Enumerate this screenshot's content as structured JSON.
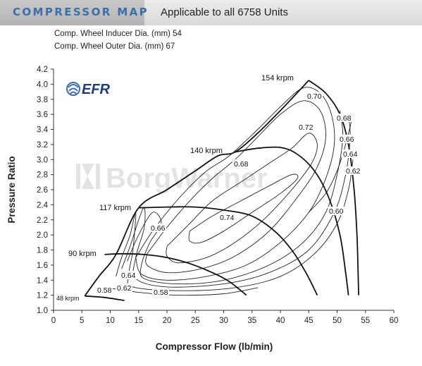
{
  "header": {
    "title": "COMPRESSOR MAP",
    "subtitle": "Applicable to all 6758 Units"
  },
  "specs": {
    "inducer": "Comp. Wheel Inducer Dia. (mm) 54",
    "outer": "Comp. Wheel Outer Dia. (mm) 67"
  },
  "logos": {
    "efr": "EFR",
    "watermark": "BorgWarner"
  },
  "chart_data": {
    "type": "line",
    "title": "",
    "xlabel": "Compressor Flow (lb/min)",
    "ylabel": "Pressure Ratio",
    "xlim": [
      0,
      60
    ],
    "ylim": [
      1.0,
      4.2
    ],
    "x_ticks": [
      "0",
      "5",
      "10",
      "15",
      "20",
      "25",
      "30",
      "35",
      "40",
      "45",
      "50",
      "55",
      "60"
    ],
    "y_ticks": [
      "1.0",
      "1.2",
      "1.4",
      "1.6",
      "1.8",
      "2.0",
      "2.2",
      "2.4",
      "2.6",
      "2.8",
      "3.0",
      "3.2",
      "3.4",
      "3.6",
      "3.8",
      "4.0",
      "4.2"
    ],
    "grid": false,
    "surge_line": [
      [
        5.5,
        1.19
      ],
      [
        8,
        1.45
      ],
      [
        11,
        1.74
      ],
      [
        15,
        2.36
      ],
      [
        20,
        2.6
      ],
      [
        25,
        2.85
      ],
      [
        29,
        3.05
      ],
      [
        32,
        3.1
      ],
      [
        36,
        3.35
      ],
      [
        40,
        3.65
      ],
      [
        45,
        4.05
      ]
    ],
    "speed_lines": [
      {
        "label": "48 krpm",
        "points": [
          [
            5.5,
            1.19
          ],
          [
            9,
            1.17
          ],
          [
            12.5,
            1.13
          ]
        ]
      },
      {
        "label": "90 krpm",
        "points": [
          [
            9,
            1.74
          ],
          [
            12,
            1.75
          ],
          [
            16,
            1.74
          ],
          [
            20,
            1.7
          ],
          [
            24,
            1.62
          ],
          [
            28,
            1.5
          ],
          [
            31,
            1.38
          ],
          [
            34,
            1.2
          ]
        ]
      },
      {
        "label": "117 krpm",
        "points": [
          [
            15,
            2.36
          ],
          [
            20,
            2.37
          ],
          [
            25,
            2.37
          ],
          [
            30,
            2.33
          ],
          [
            35,
            2.25
          ],
          [
            39,
            2.05
          ],
          [
            42,
            1.8
          ],
          [
            44.5,
            1.5
          ],
          [
            46.5,
            1.2
          ]
        ]
      },
      {
        "label": "140 krpm",
        "points": [
          [
            32,
            3.1
          ],
          [
            36,
            3.15
          ],
          [
            40,
            3.16
          ],
          [
            43,
            3.07
          ],
          [
            46,
            2.85
          ],
          [
            48.5,
            2.5
          ],
          [
            50.5,
            2.0
          ],
          [
            51.5,
            1.5
          ],
          [
            52,
            1.2
          ]
        ]
      },
      {
        "label": "154 krpm",
        "points": [
          [
            45,
            4.05
          ],
          [
            48,
            3.88
          ],
          [
            50.5,
            3.6
          ],
          [
            52,
            3.2
          ],
          [
            53,
            2.6
          ],
          [
            53.5,
            2.0
          ],
          [
            53.7,
            1.5
          ],
          [
            53.8,
            1.2
          ]
        ]
      }
    ],
    "efficiency_islands": [
      {
        "label": "0.74",
        "points": [
          [
            24,
            2.05
          ],
          [
            28,
            2.25
          ],
          [
            33,
            2.45
          ],
          [
            38,
            2.65
          ],
          [
            42,
            2.8
          ],
          [
            43,
            2.75
          ],
          [
            40,
            2.55
          ],
          [
            35,
            2.3
          ],
          [
            30,
            2.05
          ],
          [
            26,
            1.9
          ],
          [
            24,
            1.92
          ],
          [
            24,
            2.05
          ]
        ]
      },
      {
        "label": "0.72",
        "points": [
          [
            20,
            1.85
          ],
          [
            24,
            2.15
          ],
          [
            28,
            2.45
          ],
          [
            33,
            2.7
          ],
          [
            38,
            2.95
          ],
          [
            42,
            3.15
          ],
          [
            45,
            3.35
          ],
          [
            46.5,
            3.2
          ],
          [
            45.5,
            2.95
          ],
          [
            42,
            2.6
          ],
          [
            37,
            2.2
          ],
          [
            32,
            1.9
          ],
          [
            27,
            1.7
          ],
          [
            22,
            1.63
          ],
          [
            20,
            1.72
          ],
          [
            20,
            1.85
          ]
        ]
      },
      {
        "label": "0.70",
        "points": [
          [
            16.5,
            1.75
          ],
          [
            20,
            2.1
          ],
          [
            24,
            2.45
          ],
          [
            28,
            2.75
          ],
          [
            32,
            3.0
          ],
          [
            36,
            3.3
          ],
          [
            40,
            3.6
          ],
          [
            44,
            3.78
          ],
          [
            47,
            3.65
          ],
          [
            48,
            3.3
          ],
          [
            46.5,
            2.9
          ],
          [
            43,
            2.5
          ],
          [
            38,
            2.05
          ],
          [
            32,
            1.72
          ],
          [
            26,
            1.55
          ],
          [
            20,
            1.5
          ],
          [
            16.5,
            1.6
          ],
          [
            16.5,
            1.75
          ]
        ]
      },
      {
        "label": "0.68",
        "points": [
          [
            14.5,
            1.7
          ],
          [
            17,
            2.0
          ],
          [
            20,
            2.3
          ],
          [
            23.5,
            2.6
          ],
          [
            27,
            2.85
          ],
          [
            31,
            3.05
          ],
          [
            36,
            3.4
          ],
          [
            40,
            3.7
          ],
          [
            44,
            3.95
          ],
          [
            47,
            3.88
          ],
          [
            49,
            3.6
          ],
          [
            49.5,
            3.2
          ],
          [
            48,
            2.75
          ],
          [
            45,
            2.3
          ],
          [
            40,
            1.9
          ],
          [
            34,
            1.6
          ],
          [
            27,
            1.45
          ],
          [
            20,
            1.4
          ],
          [
            15.5,
            1.48
          ],
          [
            14.5,
            1.7
          ]
        ]
      },
      {
        "label": "0.66",
        "points": [
          [
            13,
            1.65
          ],
          [
            15,
            2.0
          ],
          [
            17.5,
            2.3
          ],
          [
            19,
            2.15
          ],
          [
            17,
            1.9
          ],
          [
            15.5,
            1.6
          ],
          [
            16,
            1.42
          ],
          [
            22,
            1.35
          ],
          [
            30,
            1.4
          ],
          [
            38,
            1.6
          ],
          [
            44,
            1.9
          ],
          [
            48,
            2.3
          ],
          [
            50,
            2.8
          ],
          [
            51,
            3.3
          ],
          [
            50.5,
            3.65
          ]
        ]
      },
      {
        "label": "0.64",
        "points": [
          [
            12,
            1.55
          ],
          [
            13.5,
            1.85
          ],
          [
            15,
            2.2
          ],
          [
            16,
            2.36
          ],
          [
            16,
            2.1
          ],
          [
            14.5,
            1.7
          ],
          [
            14.5,
            1.42
          ],
          [
            20,
            1.31
          ],
          [
            30,
            1.35
          ],
          [
            38,
            1.5
          ],
          [
            45,
            1.8
          ],
          [
            49.5,
            2.3
          ],
          [
            51.5,
            2.8
          ],
          [
            52.3,
            3.3
          ],
          [
            52,
            3.6
          ]
        ]
      },
      {
        "label": "0.62",
        "points": [
          [
            11,
            1.45
          ],
          [
            12,
            1.7
          ],
          [
            13.5,
            2.0
          ],
          [
            14.5,
            2.3
          ],
          [
            14,
            1.8
          ],
          [
            13.2,
            1.45
          ],
          [
            14,
            1.31
          ],
          [
            22,
            1.26
          ],
          [
            32,
            1.3
          ],
          [
            40,
            1.45
          ],
          [
            46,
            1.75
          ],
          [
            50,
            2.15
          ],
          [
            52,
            2.6
          ],
          [
            52.8,
            3.0
          ]
        ]
      },
      {
        "label": "0.60",
        "points": [
          [
            45,
            2.3
          ],
          [
            48,
            2.55
          ],
          [
            50,
            2.85
          ],
          [
            51.5,
            3.2
          ],
          [
            52.5,
            3.5
          ]
        ]
      },
      {
        "label": "0.58",
        "points": [
          [
            9.5,
            1.3
          ],
          [
            12,
            1.27
          ],
          [
            16,
            1.23
          ],
          [
            22,
            1.2
          ],
          [
            30,
            1.22
          ],
          [
            36,
            1.3
          ]
        ]
      }
    ]
  }
}
